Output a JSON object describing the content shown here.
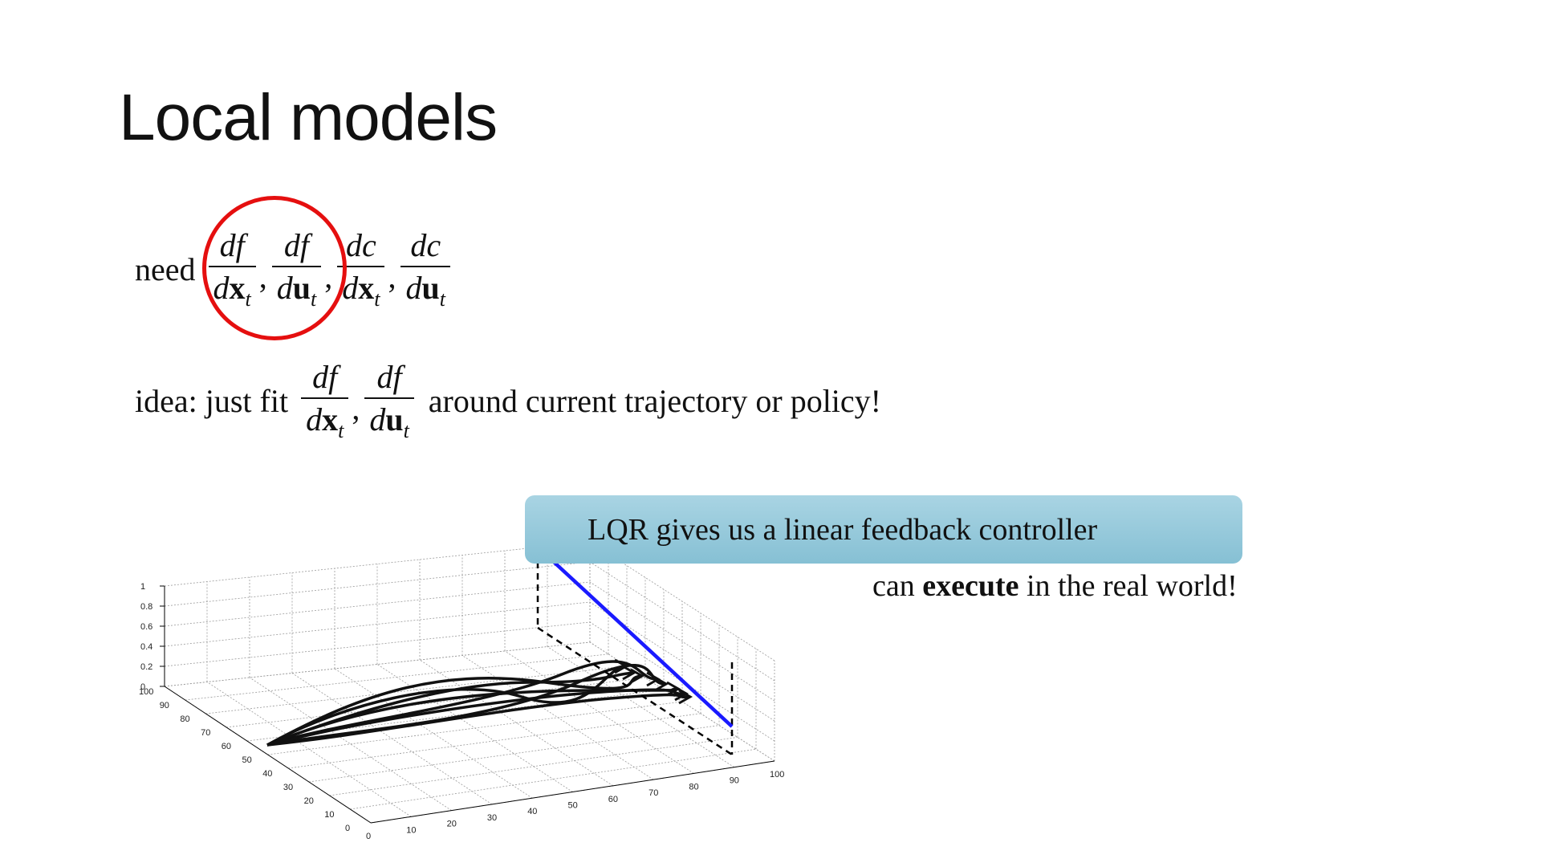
{
  "slide": {
    "title": "Local models"
  },
  "need_line": {
    "prefix": "need",
    "fracs": [
      {
        "num": "df",
        "den_d": "d",
        "den_var": "x",
        "den_sub": "t"
      },
      {
        "num": "df",
        "den_d": "d",
        "den_var": "u",
        "den_sub": "t"
      },
      {
        "num": "dc",
        "den_d": "d",
        "den_var": "x",
        "den_sub": "t"
      },
      {
        "num": "dc",
        "den_d": "d",
        "den_var": "u",
        "den_sub": "t"
      }
    ],
    "highlight_color": "#e50f0f"
  },
  "idea_line": {
    "prefix": "idea: just fit",
    "fracs": [
      {
        "num": "df",
        "den_d": "d",
        "den_var": "x",
        "den_sub": "t"
      },
      {
        "num": "df",
        "den_d": "d",
        "den_var": "u",
        "den_sub": "t"
      }
    ],
    "suffix": "around current trajectory or policy!"
  },
  "callout": {
    "text": "LQR gives us a linear feedback controller",
    "color": "#9fcfe0"
  },
  "execute_line": {
    "before": "can",
    "bold": "execute",
    "after": "in the real world!"
  },
  "plot": {
    "z_ticks": [
      "1",
      "0.8",
      "0.6",
      "0.4",
      "0.2",
      "0"
    ],
    "y_ticks": [
      "100",
      "90",
      "80",
      "70",
      "60",
      "50",
      "40",
      "30",
      "20",
      "10",
      "0"
    ],
    "x_ticks": [
      "0",
      "10",
      "20",
      "30",
      "40",
      "50",
      "60",
      "70",
      "80",
      "90",
      "100"
    ],
    "line_color": "#1a1aff"
  }
}
